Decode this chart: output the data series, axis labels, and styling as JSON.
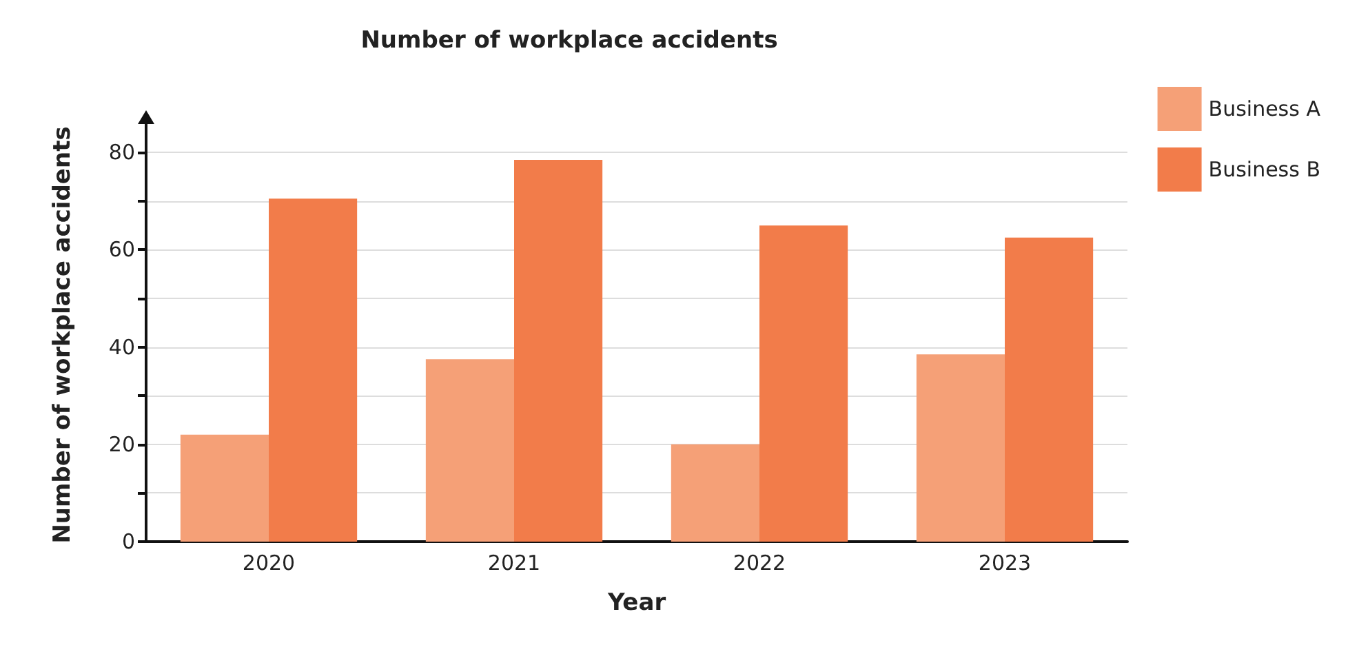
{
  "chart_data": {
    "type": "bar",
    "title": "Number of workplace accidents",
    "xlabel": "Year",
    "ylabel": "Number of workplace accidents",
    "categories": [
      "2020",
      "2021",
      "2022",
      "2023"
    ],
    "series": [
      {
        "name": "Business A",
        "color": "#f5a077",
        "values": [
          22,
          37.5,
          20,
          38.5
        ]
      },
      {
        "name": "Business B",
        "color": "#f27c4a",
        "values": [
          70.5,
          78.5,
          65,
          62.5
        ]
      }
    ],
    "ylim": [
      0,
      85
    ],
    "yticks": [
      0,
      {
        "value": 10,
        "label": null
      },
      20,
      {
        "value": 30,
        "label": null
      },
      40,
      {
        "value": 50,
        "label": null
      },
      60,
      {
        "value": 70,
        "label": null
      },
      80
    ],
    "grid": "y",
    "legend": "top right"
  }
}
